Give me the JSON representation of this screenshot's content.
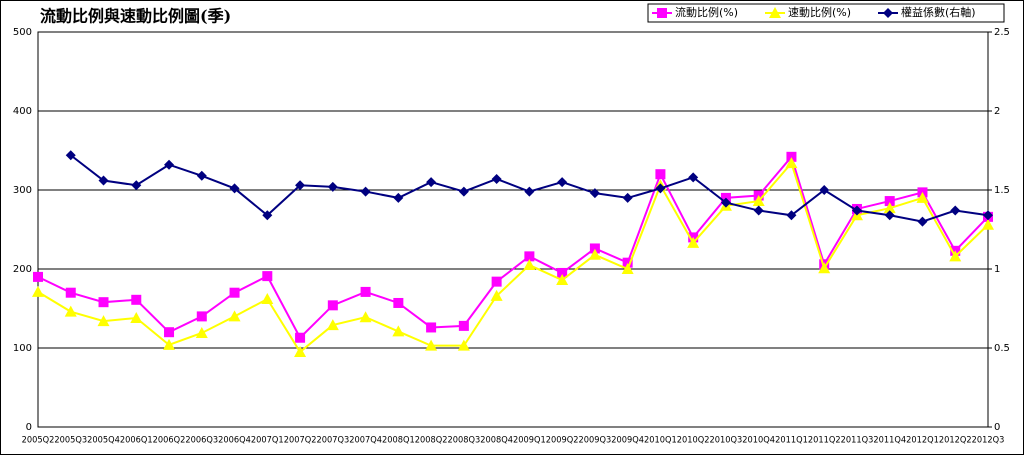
{
  "chart_data": {
    "type": "line",
    "title": "流動比例與速動比例圖(季)",
    "categories": [
      "2005Q2",
      "2005Q3",
      "2005Q4",
      "2006Q1",
      "2006Q2",
      "2006Q3",
      "2006Q4",
      "2007Q1",
      "2007Q2",
      "2007Q3",
      "2007Q4",
      "2008Q1",
      "2008Q2",
      "2008Q3",
      "2008Q4",
      "2009Q1",
      "2009Q2",
      "2009Q3",
      "2009Q4",
      "2010Q1",
      "2010Q2",
      "2010Q3",
      "2010Q4",
      "2011Q1",
      "2011Q2",
      "2011Q3",
      "2011Q4",
      "2012Q1",
      "2012Q2",
      "2012Q3"
    ],
    "series": [
      {
        "name": "流動比例(%)",
        "color": "#ff00ff",
        "marker": "square",
        "values": [
          190,
          170,
          158,
          161,
          120,
          140,
          170,
          191,
          113,
          154,
          171,
          157,
          126,
          128,
          184,
          216,
          195,
          226,
          208,
          320,
          240,
          290,
          293,
          342,
          206,
          276,
          286,
          297,
          223,
          266
        ]
      },
      {
        "name": "速動比例(%)",
        "color": "#ffff00",
        "marker": "triangle",
        "values": [
          171,
          146,
          134,
          138,
          104,
          119,
          140,
          162,
          95,
          129,
          139,
          121,
          103,
          103,
          166,
          205,
          186,
          218,
          200,
          306,
          233,
          280,
          286,
          334,
          201,
          268,
          277,
          290,
          216,
          256
        ]
      },
      {
        "name": "權益係數(右軸)",
        "color": "#000080",
        "marker": "diamond",
        "axis": "y2",
        "values": [
          null,
          1.72,
          1.56,
          1.53,
          1.66,
          1.59,
          1.51,
          1.34,
          1.53,
          1.52,
          1.49,
          1.45,
          1.55,
          1.49,
          1.57,
          1.49,
          1.55,
          1.48,
          1.45,
          1.51,
          1.58,
          1.42,
          1.37,
          1.34,
          1.5,
          1.37,
          1.34,
          1.3,
          1.37,
          1.34
        ]
      }
    ],
    "ylim": [
      0,
      500
    ],
    "yticks": [
      0,
      100,
      200,
      300,
      400,
      500
    ],
    "y2lim": [
      0,
      2.5
    ],
    "y2ticks": [
      0,
      0.5,
      1,
      1.5,
      2,
      2.5
    ],
    "grid": true,
    "legend": "top-right"
  }
}
